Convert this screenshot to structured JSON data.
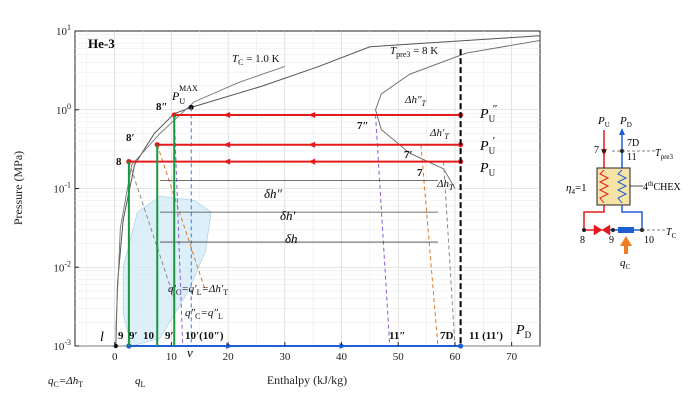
{
  "chart_data": {
    "type": "line",
    "title": "He-3",
    "xlabel": "Enthalpy  (kJ/kg)",
    "ylabel": "Pressure  (MPa)",
    "xlim": [
      -7,
      75
    ],
    "ylim_log10": [
      -3,
      1
    ],
    "x_ticks": [
      "0",
      "10",
      "20",
      "30",
      "40",
      "50",
      "60",
      "70"
    ],
    "x_tick_values": [
      0,
      10,
      20,
      30,
      40,
      50,
      60,
      70
    ],
    "y_ticks": [
      {
        "base": "10",
        "exp": "1",
        "log10": 1
      },
      {
        "base": "10",
        "exp": "0",
        "log10": 0
      },
      {
        "base": "10",
        "exp": "-1",
        "log10": -1
      },
      {
        "base": "10",
        "exp": "-2",
        "log10": -2
      },
      {
        "base": "10",
        "exp": "-3",
        "log10": -3
      }
    ],
    "grid": true,
    "isotherm_labels": {
      "tc": "T",
      "tc_sub": "C",
      "tc_val": " = 1.0 K",
      "tpre": "T",
      "tpre_sub": "pre3",
      "tpre_val": " = 8 K"
    },
    "pressure_labels": {
      "pu2": "P",
      "pu2_sub": "U",
      "pu2_sup": "″",
      "pu1": "P",
      "pu1_sub": "U",
      "pu1_sup": "′",
      "pu": "P",
      "pu_sub": "U",
      "pd": "P",
      "pd_sub": "D",
      "pumax": "P",
      "pumax_sub": "U",
      "pumax_sup": "MAX"
    },
    "state_points": {
      "p8": "8",
      "p8p": "8′",
      "p8pp": "8″",
      "p7": "7",
      "p7p": "7′",
      "p7pp": "7″",
      "p9": "9",
      "p9p": "9′",
      "p10": "10",
      "p10p": "10′(10″)",
      "p11pp": "11″",
      "p7d": "7D",
      "p11": "11 (11′)",
      "pl": "l",
      "pv": "v"
    },
    "annotations": {
      "dh2": "Δh″",
      "dh2_sub": "T",
      "dh1": "Δh′",
      "dh1_sub": "T",
      "dh0": "Δh",
      "dh0_sub": "T",
      "delta2": "δh″",
      "delta1": "δh′",
      "delta0": "δh",
      "q1": "q′",
      "q1_sub": "C",
      "q1_mid": "=q′",
      "q1_sub2": "L",
      "q1_end": "=Δh′",
      "q1_sub3": "T",
      "q2": "q″",
      "q2_sub": "C",
      "q2_mid": "=q″",
      "q2_sub2": "L",
      "qc": "q",
      "qc_sub": "C",
      "qc_end": "=Δh",
      "qc_sub2": "T",
      "ql": "q",
      "ql_sub": "L"
    },
    "series": [
      {
        "color": "#e41a1c",
        "points": [
          [
            2.5,
            -0.658
          ],
          [
            61,
            -0.658
          ]
        ]
      },
      {
        "color": "#e41a1c",
        "points": [
          [
            7.5,
            -0.444
          ],
          [
            61,
            -0.444
          ]
        ]
      },
      {
        "color": "#e41a1c",
        "points": [
          [
            10.5,
            -0.066
          ],
          [
            61,
            -0.066
          ]
        ]
      },
      {
        "color": "#1f5fd6",
        "points": [
          [
            2.5,
            -3
          ],
          [
            61,
            -3
          ]
        ]
      },
      {
        "color": "#1a9641",
        "points": [
          [
            7.5,
            -0.444
          ],
          [
            7.5,
            -3
          ]
        ]
      },
      {
        "color": "#1a9641",
        "points": [
          [
            10.5,
            -0.066
          ],
          [
            10.5,
            -3
          ]
        ]
      },
      {
        "color": "#1a9641",
        "points": [
          [
            2.5,
            -0.658
          ],
          [
            2.5,
            -3
          ]
        ]
      },
      {
        "color": "#000000",
        "points": [
          [
            61,
            0.77
          ],
          [
            61,
            -3
          ]
        ]
      }
    ],
    "saturation_dome": {
      "liquid": [
        [
          0.2,
          -3.0
        ],
        [
          0.5,
          -2.2
        ],
        [
          1.5,
          -1.4
        ],
        [
          3.5,
          -0.7
        ],
        [
          7.0,
          -0.3
        ],
        [
          10.5,
          -0.05
        ],
        [
          13.5,
          0.03
        ]
      ],
      "vapor": [
        [
          13.5,
          0.03
        ],
        [
          26,
          0.3
        ],
        [
          36,
          0.55
        ],
        [
          45,
          0.8
        ],
        [
          75,
          0.94
        ]
      ]
    }
  },
  "schematic": {
    "pu": "P",
    "pu_sub": "U",
    "pd": "P",
    "pd_sub": "D",
    "n7": "7",
    "n7d": "7D",
    "n11": "11",
    "tpre": "T",
    "tpre_sub": "pre3",
    "eta": "η",
    "eta_sub": "4",
    "eta_val": "=1",
    "chex": "4",
    "chex_sup": "th",
    "chex_end": "CHEX",
    "n8": "8",
    "n9": "9",
    "n10": "10",
    "tc": "T",
    "tc_sub": "C",
    "qc": "q",
    "qc_sub": "C"
  }
}
